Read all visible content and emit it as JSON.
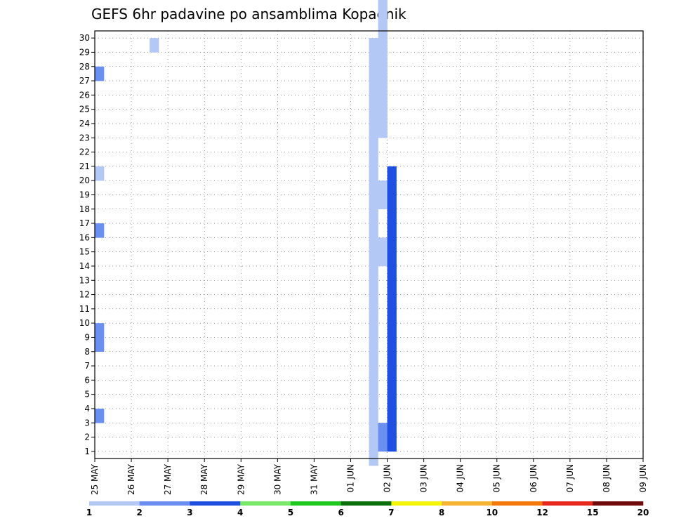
{
  "chart_data": {
    "type": "heatmap",
    "title": "GEFS 6hr padavine po ansamblima Kopaonik",
    "xlabel": "",
    "ylabel": "",
    "x_tick_labels": [
      "25 MAY",
      "26 MAY",
      "27 MAY",
      "28 MAY",
      "29 MAY",
      "30 MAY",
      "31 MAY",
      "01 JUN",
      "02 JUN",
      "03 JUN",
      "04 JUN",
      "05 JUN",
      "06 JUN",
      "07 JUN",
      "08 JUN",
      "09 JUN"
    ],
    "x_range_days": [
      0,
      15
    ],
    "steps_per_day": 4,
    "y_tick_labels": [
      1,
      2,
      3,
      4,
      5,
      6,
      7,
      8,
      9,
      10,
      11,
      12,
      13,
      14,
      15,
      16,
      17,
      18,
      19,
      20,
      21,
      22,
      23,
      24,
      25,
      26,
      27,
      28,
      29,
      30
    ],
    "ylim": [
      0,
      30
    ],
    "grid": true,
    "colorbar": {
      "levels": [
        1,
        2,
        3,
        4,
        5,
        6,
        7,
        8,
        10,
        12,
        15,
        20
      ],
      "labels": [
        "1",
        "2",
        "3",
        "4",
        "5",
        "6",
        "7",
        "8",
        "10",
        "12",
        "15",
        "20"
      ],
      "colors": [
        "#b4c8f5",
        "#6a8ff0",
        "#1e4fe0",
        "#7ae86a",
        "#1ec81e",
        "#0a6e0a",
        "#f5f50a",
        "#f5b432",
        "#f5780a",
        "#e6281e",
        "#700a0a"
      ]
    },
    "cells": [
      [
        30,
        0,
        1
      ],
      [
        30,
        1,
        1
      ],
      [
        30,
        2,
        1
      ],
      [
        30,
        3,
        1
      ],
      [
        30,
        4,
        1
      ],
      [
        30,
        5,
        1
      ],
      [
        30,
        6,
        1
      ],
      [
        30,
        7,
        1
      ],
      [
        30,
        8,
        1
      ],
      [
        30,
        9,
        1
      ],
      [
        30,
        10,
        1
      ],
      [
        30,
        11,
        1
      ],
      [
        30,
        12,
        1
      ],
      [
        30,
        13,
        1
      ],
      [
        30,
        14,
        1
      ],
      [
        30,
        15,
        1
      ],
      [
        30,
        16,
        1
      ],
      [
        30,
        17,
        1
      ],
      [
        30,
        18,
        1
      ],
      [
        30,
        19,
        1
      ],
      [
        30,
        20,
        1
      ],
      [
        30,
        21,
        1
      ],
      [
        30,
        22,
        1
      ],
      [
        30,
        23,
        1
      ],
      [
        30,
        24,
        1
      ],
      [
        30,
        25,
        1
      ],
      [
        30,
        26,
        1
      ],
      [
        30,
        27,
        1
      ],
      [
        30,
        28,
        1
      ],
      [
        30,
        29,
        1
      ],
      [
        31,
        1,
        2
      ],
      [
        31,
        2,
        2
      ],
      [
        31,
        14,
        1
      ],
      [
        31,
        15,
        1
      ],
      [
        31,
        18,
        1
      ],
      [
        31,
        19,
        1
      ],
      [
        31,
        23,
        1
      ],
      [
        31,
        24,
        1
      ],
      [
        31,
        25,
        1
      ],
      [
        31,
        26,
        1
      ],
      [
        31,
        27,
        1
      ],
      [
        31,
        28,
        1
      ],
      [
        31,
        29,
        1
      ],
      [
        31,
        30,
        1
      ],
      [
        31,
        31,
        1
      ],
      [
        31,
        32,
        1
      ],
      [
        31,
        33,
        1
      ],
      [
        31,
        34,
        1
      ],
      [
        31,
        35,
        1
      ],
      [
        31,
        36,
        1
      ],
      [
        31,
        37,
        1
      ],
      [
        31,
        38,
        1
      ],
      [
        31,
        39,
        1
      ],
      [
        31,
        40,
        1
      ],
      [
        31,
        41,
        1
      ],
      [
        31,
        42,
        1
      ],
      [
        31,
        43,
        1
      ],
      [
        31,
        44,
        1
      ],
      [
        31,
        45,
        1
      ],
      [
        31,
        46,
        1
      ],
      [
        31,
        47,
        1
      ],
      [
        32,
        1,
        3
      ],
      [
        32,
        2,
        3
      ],
      [
        32,
        3,
        3
      ],
      [
        32,
        4,
        3
      ],
      [
        32,
        5,
        3
      ],
      [
        32,
        6,
        3
      ],
      [
        32,
        7,
        3
      ],
      [
        32,
        8,
        3
      ],
      [
        32,
        9,
        3
      ],
      [
        32,
        10,
        3
      ],
      [
        32,
        11,
        3
      ],
      [
        32,
        12,
        3
      ],
      [
        32,
        13,
        3
      ],
      [
        32,
        14,
        3
      ],
      [
        32,
        15,
        3
      ],
      [
        32,
        16,
        3
      ],
      [
        32,
        17,
        3
      ],
      [
        32,
        18,
        3
      ],
      [
        32,
        19,
        3
      ],
      [
        32,
        20,
        3
      ],
      [
        0,
        3,
        2
      ],
      [
        0,
        16,
        2
      ],
      [
        0,
        20,
        1
      ],
      [
        0,
        27,
        2
      ],
      [
        6,
        29,
        1
      ],
      [
        0,
        8,
        2
      ],
      [
        0,
        9,
        2
      ]
    ]
  }
}
